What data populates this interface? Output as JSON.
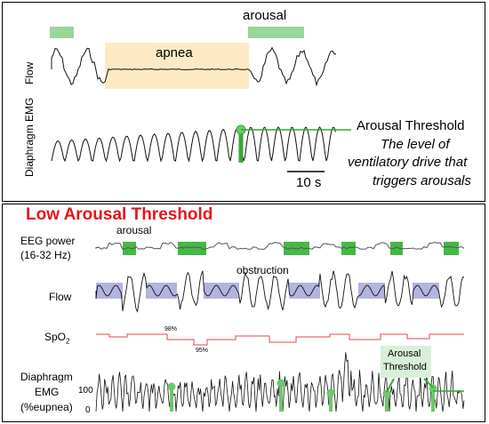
{
  "top_panel": {
    "arousal_label": "arousal",
    "apnea_label": "apnea",
    "flow_label": "Flow",
    "emg_label": "Diaphragm EMG",
    "threshold_title": "Arousal Threshold",
    "threshold_desc": [
      "The level of",
      "ventilatory drive that",
      "triggers arousals"
    ],
    "scale_label": "10 s",
    "colors": {
      "arousal_bar": "#99d699",
      "apnea_box": "#fde9c4",
      "threshold": "#3aa63a"
    }
  },
  "bottom_panel": {
    "title": "Low Arousal Threshold",
    "title_color": "#e8141b",
    "eeg_label": [
      "EEG power",
      "(16-32 Hz)"
    ],
    "arousal_label": "arousal",
    "obstruction_label": "obstruction",
    "flow_label": "Flow",
    "spo2_label": "SpO",
    "spo2_sub": "2",
    "spo2_high": "98%",
    "spo2_low": "95%",
    "emg_label": [
      "Diaphragm",
      "EMG",
      "(%eupnea)"
    ],
    "emg_tick_100": "100",
    "emg_tick_0": "0",
    "callout": [
      "Arousal",
      "Threshold"
    ],
    "colors": {
      "eeg_box": "#44b844",
      "flow_box": "#b3b3e0",
      "spo2": "#e8454a",
      "marker": "#6cc86c",
      "callout_bg": "#d8efd8"
    }
  }
}
